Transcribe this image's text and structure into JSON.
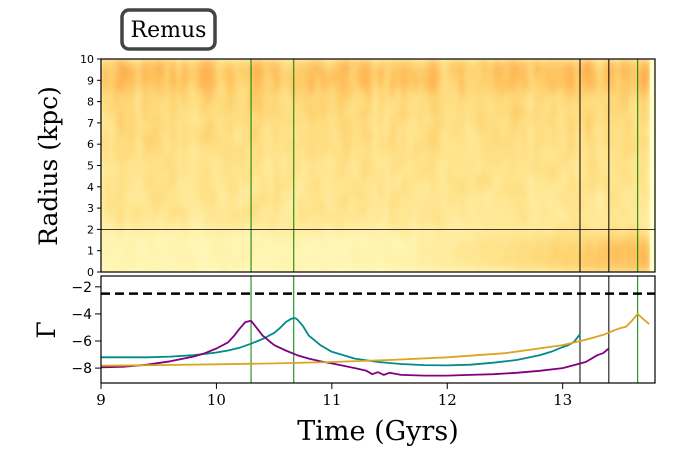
{
  "chart_data": [
    {
      "type": "heatmap",
      "title": "Remus",
      "xlabel": "",
      "ylabel": "Radius (kpc)",
      "xlim": [
        9,
        13.8
      ],
      "ylim": [
        0,
        10
      ],
      "y_ticks": [
        0,
        1,
        2,
        3,
        4,
        5,
        6,
        7,
        8,
        9,
        10
      ],
      "x_range_data": [
        9,
        13.75
      ],
      "colormap": "YlOrRd",
      "horizontal_line": {
        "y": 2,
        "color": "#000000"
      },
      "vertical_lines": [
        {
          "x": 10.3,
          "color": "#008000"
        },
        {
          "x": 10.67,
          "color": "#008000"
        },
        {
          "x": 13.15,
          "color": "#000000"
        },
        {
          "x": 13.4,
          "color": "#000000"
        },
        {
          "x": 13.65,
          "color": "#008000"
        }
      ]
    },
    {
      "type": "line",
      "xlabel": "Time (Gyrs)",
      "ylabel": "Γ",
      "xlim": [
        9,
        13.8
      ],
      "ylim": [
        -9.1,
        -1.2
      ],
      "x_ticks": [
        9,
        10,
        11,
        12,
        13
      ],
      "y_ticks": [
        -8,
        -6,
        -4,
        -2
      ],
      "reference_line": {
        "y": -2.5,
        "style": "dashed",
        "color": "#000000"
      },
      "vertical_lines": [
        {
          "x": 10.3,
          "color": "#008000"
        },
        {
          "x": 10.67,
          "color": "#008000"
        },
        {
          "x": 13.15,
          "color": "#000000"
        },
        {
          "x": 13.4,
          "color": "#000000"
        },
        {
          "x": 13.65,
          "color": "#008000"
        }
      ],
      "series": [
        {
          "color": "#008b8b",
          "x": [
            9.0,
            9.2,
            9.4,
            9.6,
            9.8,
            9.9,
            10.0,
            10.1,
            10.2,
            10.3,
            10.4,
            10.5,
            10.55,
            10.6,
            10.65,
            10.68,
            10.7,
            10.75,
            10.8,
            10.9,
            11.0,
            11.2,
            11.4,
            11.6,
            11.8,
            12.0,
            12.2,
            12.4,
            12.6,
            12.8,
            12.9,
            13.0,
            13.05,
            13.1,
            13.15
          ],
          "y": [
            -7.2,
            -7.2,
            -7.2,
            -7.15,
            -7.05,
            -6.95,
            -6.85,
            -6.7,
            -6.5,
            -6.2,
            -5.85,
            -5.4,
            -5.05,
            -4.6,
            -4.35,
            -4.3,
            -4.4,
            -4.9,
            -5.6,
            -6.3,
            -6.8,
            -7.3,
            -7.55,
            -7.7,
            -7.78,
            -7.8,
            -7.75,
            -7.6,
            -7.4,
            -7.05,
            -6.8,
            -6.45,
            -6.3,
            -6.05,
            -5.5
          ]
        },
        {
          "color": "#800080",
          "x": [
            9.0,
            9.2,
            9.4,
            9.6,
            9.8,
            9.9,
            10.0,
            10.1,
            10.15,
            10.2,
            10.25,
            10.3,
            10.35,
            10.4,
            10.5,
            10.6,
            10.7,
            10.8,
            10.9,
            11.0,
            11.2,
            11.3,
            11.35,
            11.4,
            11.45,
            11.5,
            11.6,
            11.8,
            12.0,
            12.2,
            12.4,
            12.6,
            12.8,
            13.0,
            13.2,
            13.3,
            13.35,
            13.4
          ],
          "y": [
            -7.95,
            -7.9,
            -7.75,
            -7.5,
            -7.15,
            -6.9,
            -6.55,
            -6.1,
            -5.65,
            -5.1,
            -4.6,
            -4.5,
            -5.05,
            -5.6,
            -6.3,
            -6.7,
            -7.05,
            -7.3,
            -7.5,
            -7.65,
            -8.0,
            -8.2,
            -8.45,
            -8.3,
            -8.5,
            -8.35,
            -8.5,
            -8.55,
            -8.55,
            -8.5,
            -8.45,
            -8.35,
            -8.2,
            -8.0,
            -7.55,
            -7.05,
            -6.9,
            -6.55
          ]
        },
        {
          "color": "#daa520",
          "x": [
            9.0,
            9.5,
            10.0,
            10.5,
            11.0,
            11.5,
            12.0,
            12.5,
            13.0,
            13.2,
            13.35,
            13.45,
            13.5,
            13.55,
            13.6,
            13.65,
            13.7,
            13.75
          ],
          "y": [
            -7.82,
            -7.78,
            -7.72,
            -7.65,
            -7.55,
            -7.4,
            -7.2,
            -6.9,
            -6.3,
            -5.9,
            -5.55,
            -5.2,
            -5.05,
            -4.95,
            -4.5,
            -4.0,
            -4.4,
            -4.75
          ]
        }
      ]
    }
  ]
}
